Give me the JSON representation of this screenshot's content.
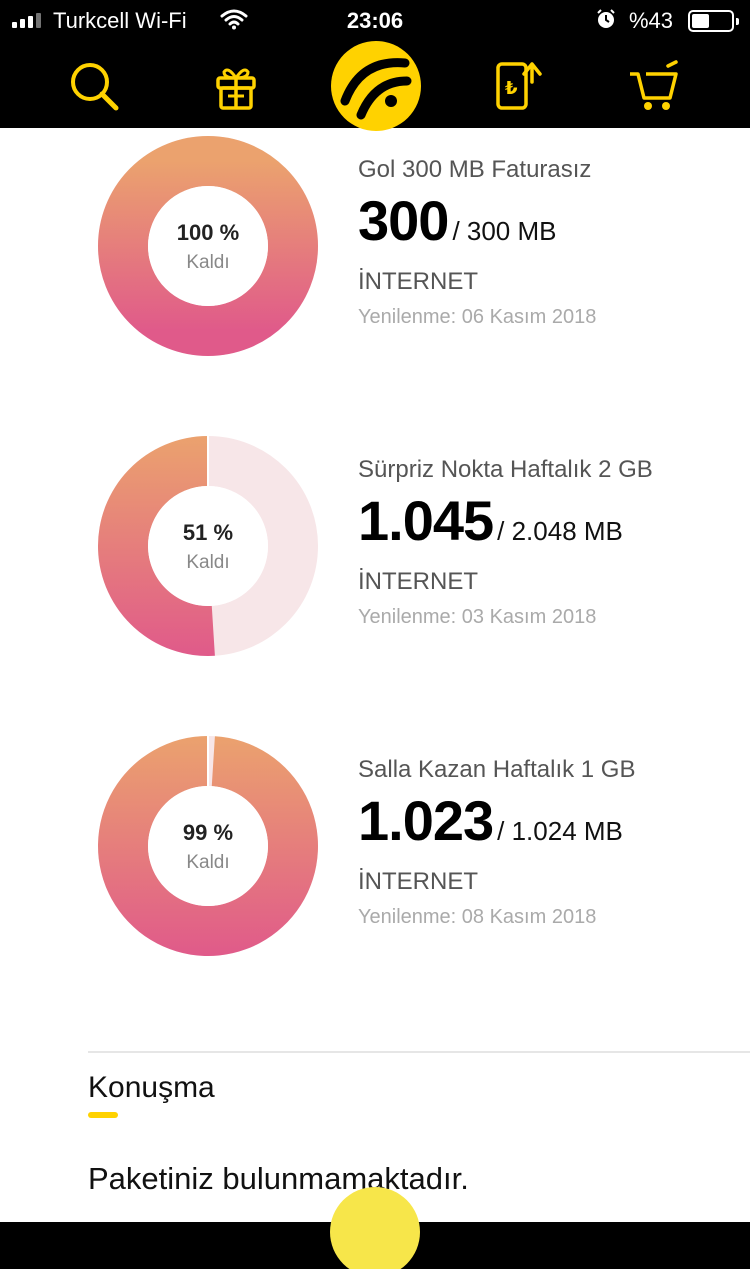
{
  "status_bar": {
    "carrier": "Turkcell Wi-Fi",
    "time": "23:06",
    "battery_text": "%43"
  },
  "nav": {
    "icons": [
      "search-icon",
      "gift-icon",
      "turkcell-logo",
      "pay-bill-icon",
      "cart-icon"
    ],
    "accent_color": "#FFD200"
  },
  "packages": [
    {
      "name": "Gol 300 MB Faturasız",
      "remaining": "300",
      "total": "/ 300 MB",
      "percent": "100 %",
      "percent_value": 100,
      "remaining_label": "Kaldı",
      "type": "İNTERNET",
      "renewal": "Yenilenme: 06 Kasım 2018"
    },
    {
      "name": "Sürpriz Nokta Haftalık 2 GB",
      "remaining": "1.045",
      "total": "/ 2.048 MB",
      "percent": "51 %",
      "percent_value": 51,
      "remaining_label": "Kaldı",
      "type": "İNTERNET",
      "renewal": "Yenilenme: 03 Kasım 2018"
    },
    {
      "name": "Salla Kazan Haftalık 1 GB",
      "remaining": "1.023",
      "total": "/ 1.024 MB",
      "percent": "99 %",
      "percent_value": 99,
      "remaining_label": "Kaldı",
      "type": "İNTERNET",
      "renewal": "Yenilenme: 08 Kasım 2018"
    }
  ],
  "voice_section": {
    "title": "Konuşma",
    "empty_message": "Paketiniz bulunmamaktadır."
  },
  "colors": {
    "gradient_top": "#EBA26E",
    "gradient_bottom": "#E05A8A",
    "track": "#F7E6E8"
  }
}
